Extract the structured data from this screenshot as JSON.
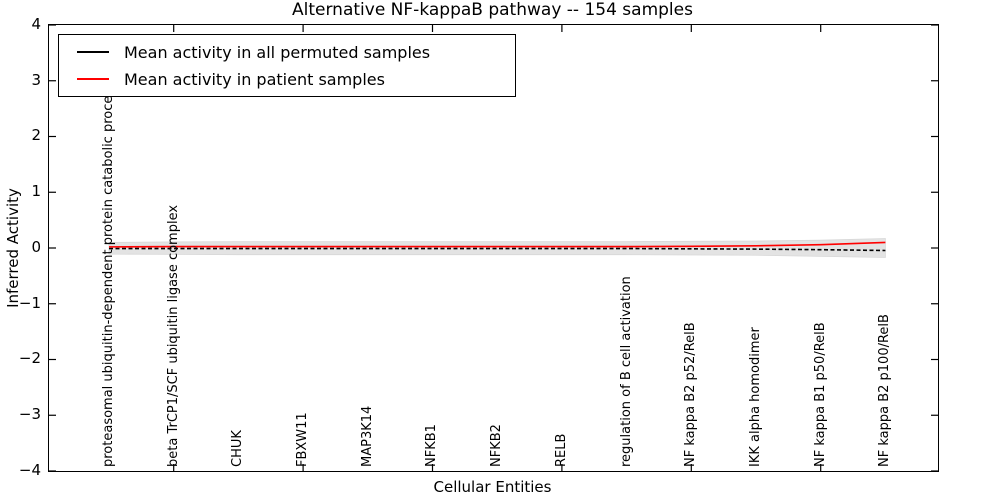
{
  "chart_data": {
    "type": "line",
    "title": "Alternative NF-kappaB pathway -- 154 samples",
    "xlabel": "Cellular Entities",
    "ylabel": "Inferred Activity",
    "ylim": [
      -4,
      4
    ],
    "ytick_labels": [
      "4",
      "3",
      "2",
      "1",
      "0",
      "−1",
      "−2",
      "−3",
      "−4"
    ],
    "ytick_values": [
      4,
      3,
      2,
      1,
      0,
      -1,
      -2,
      -3,
      -4
    ],
    "xtick_indices": [
      1,
      3,
      5,
      7,
      9,
      11
    ],
    "grid": false,
    "legend_position": "upper left",
    "categories": [
      "proteasomal ubiquitin-dependent protein catabolic process",
      "beta TrCP1/SCF ubiquitin ligase complex",
      "CHUK",
      "FBXW11",
      "MAP3K14",
      "NFKB1",
      "NFKB2",
      "RELB",
      "regulation of B cell activation",
      "NF kappa B2 p52/RelB",
      "IKK alpha homodimer",
      "NF kappa B1 p50/RelB",
      "NF kappa B2 p100/RelB"
    ],
    "series": [
      {
        "name": "Mean activity in all permuted samples",
        "color": "#000000",
        "line_style": "dashed",
        "values": [
          -0.01,
          -0.01,
          -0.01,
          -0.01,
          -0.01,
          -0.01,
          -0.01,
          -0.01,
          -0.01,
          -0.015,
          -0.02,
          -0.03,
          -0.045
        ]
      },
      {
        "name": "Mean activity in patient samples",
        "color": "#ff0000",
        "line_style": "solid",
        "values": [
          0.02,
          0.025,
          0.025,
          0.025,
          0.025,
          0.025,
          0.025,
          0.025,
          0.025,
          0.03,
          0.04,
          0.06,
          0.1
        ]
      }
    ],
    "band": {
      "name": "spread of permuted sample activity",
      "color": "#e3e3e3",
      "edge_color": "#d8d8d8",
      "upper": [
        0.1,
        0.11,
        0.115,
        0.115,
        0.115,
        0.115,
        0.115,
        0.115,
        0.115,
        0.12,
        0.125,
        0.14,
        0.17
      ],
      "lower": [
        -0.11,
        -0.115,
        -0.12,
        -0.12,
        -0.12,
        -0.12,
        -0.12,
        -0.12,
        -0.12,
        -0.125,
        -0.13,
        -0.15,
        -0.17
      ]
    }
  },
  "legend": {
    "items": [
      {
        "label": "Mean activity in all permuted samples",
        "color": "#000000"
      },
      {
        "label": "Mean activity in patient samples",
        "color": "#ff0000"
      }
    ]
  },
  "colors": {
    "axis": "#000000",
    "background": "#ffffff",
    "patient_line": "#ff0000",
    "permuted_line": "#000000",
    "band": "#e3e3e3"
  }
}
